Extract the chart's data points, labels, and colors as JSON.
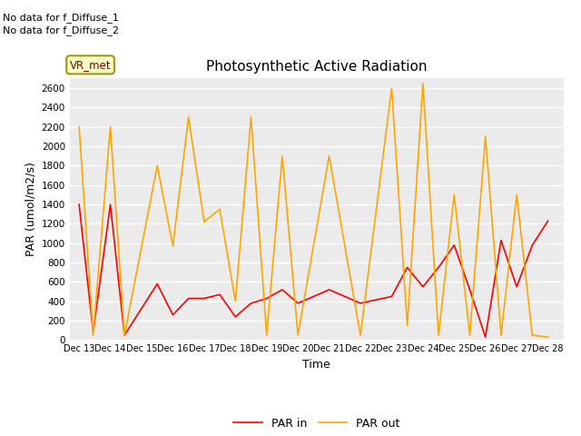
{
  "title": "Photosynthetic Active Radiation",
  "xlabel": "Time",
  "ylabel": "PAR (umol/m2/s)",
  "annotations": [
    "No data for f_Diffuse_1",
    "No data for f_Diffuse_2"
  ],
  "legend_label_box": "VR_met",
  "x_labels": [
    "Dec 13",
    "Dec 14",
    "Dec 15",
    "Dec 16",
    "Dec 17",
    "Dec 18",
    "Dec 19",
    "Dec 20",
    "Dec 21",
    "Dec 22",
    "Dec 23",
    "Dec 24",
    "Dec 25",
    "Dec 26",
    "Dec 27",
    "Dec 28"
  ],
  "color_par_in": "#FF0000",
  "color_par_out": "#FFA500",
  "ylim": [
    0,
    2700
  ],
  "par_in_x": [
    0,
    0.45,
    1.0,
    1.45,
    2.5,
    3.0,
    3.5,
    4.0,
    4.5,
    5.0,
    5.5,
    6.0,
    6.5,
    7.0,
    8.0,
    9.0,
    10.0,
    10.5,
    11.0,
    11.5,
    12.0,
    12.5,
    13.0,
    13.5,
    14.0,
    14.5,
    15.0
  ],
  "par_in_y": [
    1400,
    80,
    1400,
    50,
    580,
    260,
    430,
    430,
    470,
    240,
    380,
    430,
    520,
    380,
    520,
    380,
    450,
    750,
    550,
    750,
    980,
    520,
    30,
    1030,
    550,
    980,
    1230
  ],
  "par_out_x": [
    0,
    0.45,
    1.0,
    1.45,
    2.5,
    3.0,
    3.5,
    4.0,
    4.5,
    5.0,
    5.5,
    6.0,
    6.5,
    7.0,
    8.0,
    9.0,
    10.0,
    10.5,
    11.0,
    11.5,
    12.0,
    12.5,
    13.0,
    13.5,
    14.0,
    14.5,
    15.0
  ],
  "par_out_y": [
    2200,
    50,
    2200,
    50,
    1800,
    970,
    2300,
    1220,
    1350,
    400,
    2300,
    50,
    1900,
    50,
    1900,
    50,
    2600,
    150,
    2650,
    50,
    1500,
    50,
    2100,
    50,
    1500,
    50,
    30
  ]
}
